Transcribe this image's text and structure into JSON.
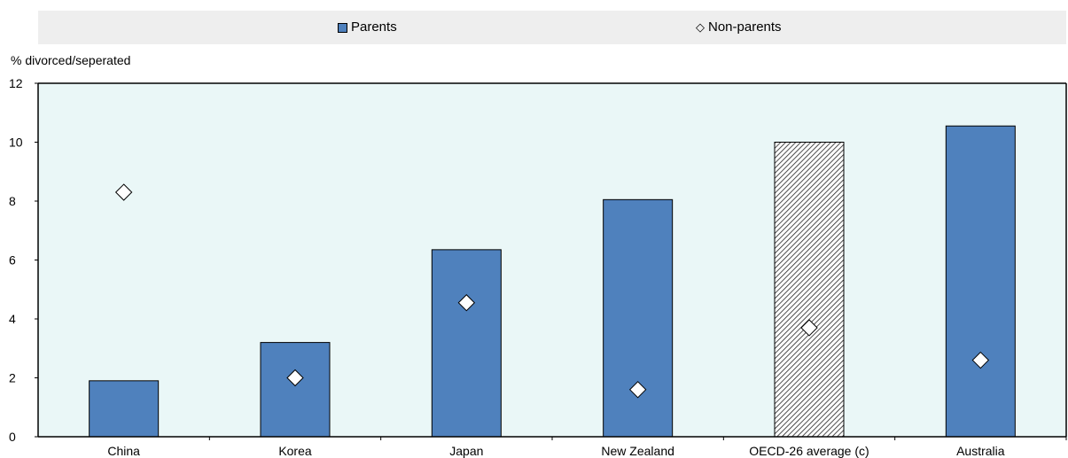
{
  "chart_data": {
    "type": "bar",
    "ylabel": "% divorced/seperated",
    "ylim": [
      0,
      12
    ],
    "yticks": [
      0,
      2,
      4,
      6,
      8,
      10,
      12
    ],
    "categories": [
      "China",
      "Korea",
      "Japan",
      "New Zealand",
      "OECD-26 average (c)",
      "Australia"
    ],
    "series": [
      {
        "name": "Parents",
        "type": "bar",
        "values": [
          1.9,
          3.2,
          6.35,
          8.05,
          10.0,
          10.55
        ]
      },
      {
        "name": "Non-parents",
        "type": "scatter",
        "marker": "diamond",
        "values": [
          8.3,
          2.0,
          4.55,
          1.6,
          3.7,
          2.6
        ]
      }
    ],
    "highlight_category": "OECD-26 average (c)",
    "legend_position": "top",
    "grid": false,
    "colors": {
      "bar": "#4f81bd",
      "plot_background": "#eaf7f7",
      "legend_background": "#eeeeee",
      "marker_fill": "#ffffff"
    }
  },
  "legend": {
    "parents_label": "Parents",
    "nonparents_label": "Non-parents"
  }
}
